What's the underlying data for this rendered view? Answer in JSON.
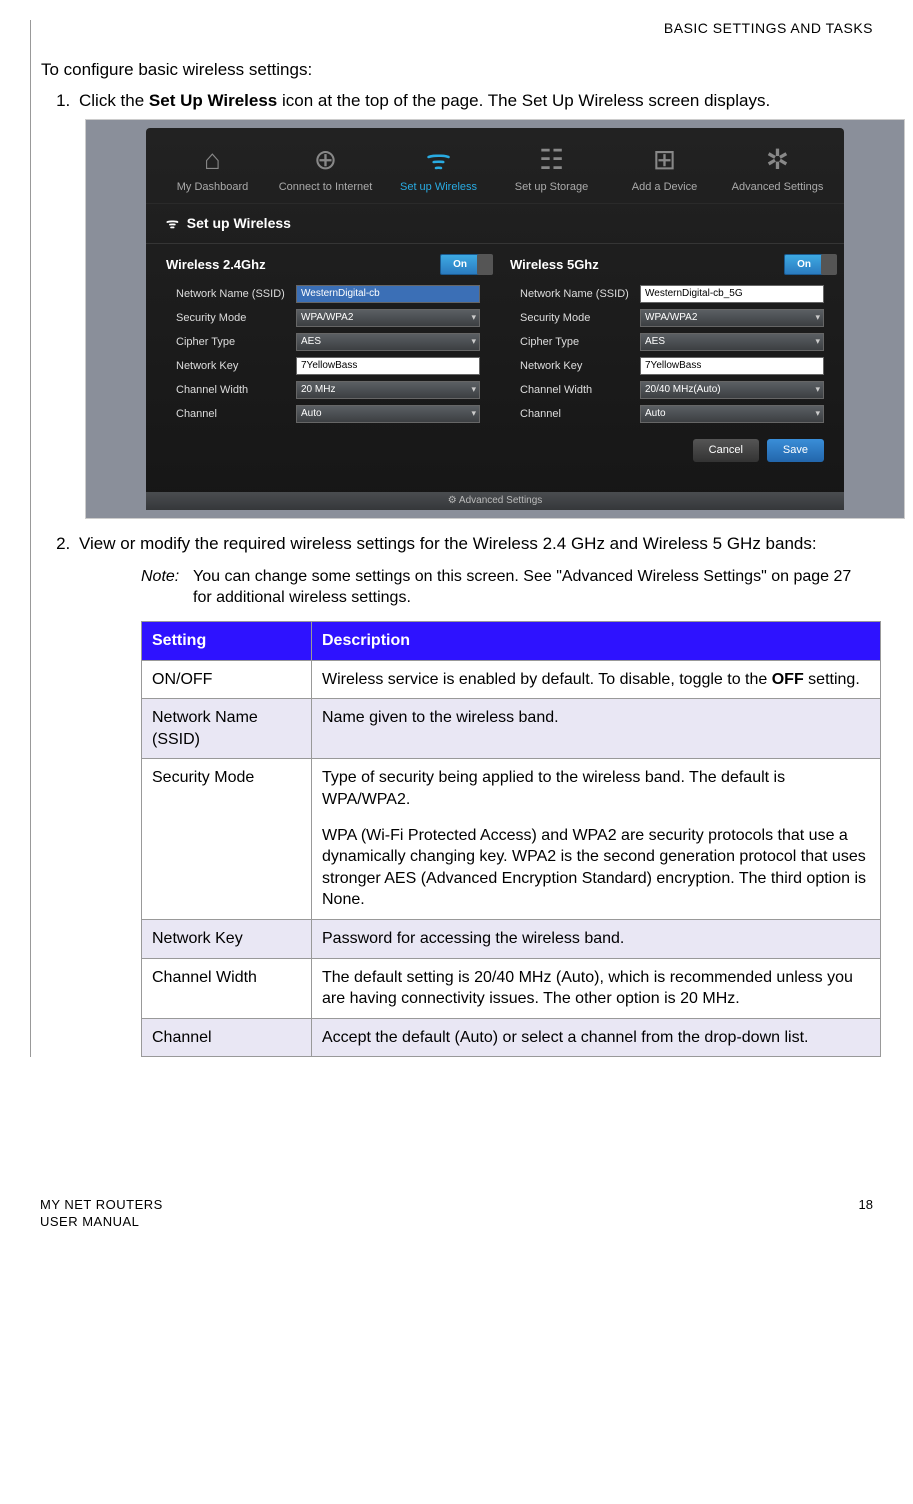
{
  "header": {
    "section_title": "BASIC SETTINGS AND TASKS"
  },
  "intro": "To configure basic wireless settings:",
  "step1": {
    "pre": "Click the ",
    "bold": "Set Up Wireless",
    "post": " icon at the top of the page. The Set Up Wireless screen displays."
  },
  "step2": {
    "text": "View or modify the required wireless settings for the Wireless 2.4 GHz and Wireless 5 GHz bands:"
  },
  "note": {
    "label": "Note:",
    "text": "You can change some settings on this screen. See \"Advanced Wireless Settings\" on page 27 for additional wireless settings."
  },
  "ui": {
    "nav": [
      {
        "label": "My Dashboard",
        "icon": "⌂"
      },
      {
        "label": "Connect to Internet",
        "icon": "⊕"
      },
      {
        "label": "Set up Wireless",
        "icon": "ᯤ",
        "active": true
      },
      {
        "label": "Set up Storage",
        "icon": "☷"
      },
      {
        "label": "Add a Device",
        "icon": "⊞"
      },
      {
        "label": "Advanced Settings",
        "icon": "✲"
      }
    ],
    "section_title": "Set up Wireless",
    "wifi_icon": "ᯤ",
    "toggle_label": "On",
    "col24": {
      "title": "Wireless 2.4Ghz",
      "fields": {
        "ssid_label": "Network Name (SSID)",
        "ssid_value": "WesternDigital-cb",
        "sec_label": "Security Mode",
        "sec_value": "WPA/WPA2",
        "cipher_label": "Cipher Type",
        "cipher_value": "AES",
        "key_label": "Network Key",
        "key_value": "7YellowBass",
        "cw_label": "Channel Width",
        "cw_value": "20 MHz",
        "ch_label": "Channel",
        "ch_value": "Auto"
      }
    },
    "col5": {
      "title": "Wireless 5Ghz",
      "fields": {
        "ssid_label": "Network Name (SSID)",
        "ssid_value": "WesternDigital-cb_5G",
        "sec_label": "Security Mode",
        "sec_value": "WPA/WPA2",
        "cipher_label": "Cipher Type",
        "cipher_value": "AES",
        "key_label": "Network Key",
        "key_value": "7YellowBass",
        "cw_label": "Channel Width",
        "cw_value": "20/40 MHz(Auto)",
        "ch_label": "Channel",
        "ch_value": "Auto"
      }
    },
    "cancel": "Cancel",
    "save": "Save",
    "adv_bar": "⚙ Advanced Settings"
  },
  "table": {
    "header": {
      "setting": "Setting",
      "description": "Description"
    },
    "rows": [
      {
        "setting": "ON/OFF",
        "desc_pre": "Wireless service is enabled by default. To disable, toggle to the ",
        "desc_bold": "OFF",
        "desc_post": " setting.",
        "alt": false
      },
      {
        "setting": "Network Name (SSID)",
        "desc": "Name given to the wireless band.",
        "alt": true
      },
      {
        "setting": "Security Mode",
        "desc_p1": "Type of security being applied to the wireless band. The default is WPA/WPA2.",
        "desc_p2": "WPA (Wi-Fi Protected Access) and WPA2 are security protocols that use a dynamically changing key. WPA2 is the second generation protocol that uses stronger AES (Advanced Encryption Standard) encryption. The third option is None.",
        "alt": false
      },
      {
        "setting": "Network Key",
        "desc": "Password for accessing the wireless band.",
        "alt": true
      },
      {
        "setting": "Channel Width",
        "desc": "The default setting is 20/40 MHz (Auto), which is recommended unless you are having connectivity issues. The other option is 20 MHz.",
        "alt": false
      },
      {
        "setting": "Channel",
        "desc": "Accept the default (Auto) or select a channel from the drop-down list.",
        "alt": true
      }
    ]
  },
  "footer": {
    "line1": "MY NET ROUTERS",
    "line2": "USER MANUAL",
    "page": "18"
  }
}
